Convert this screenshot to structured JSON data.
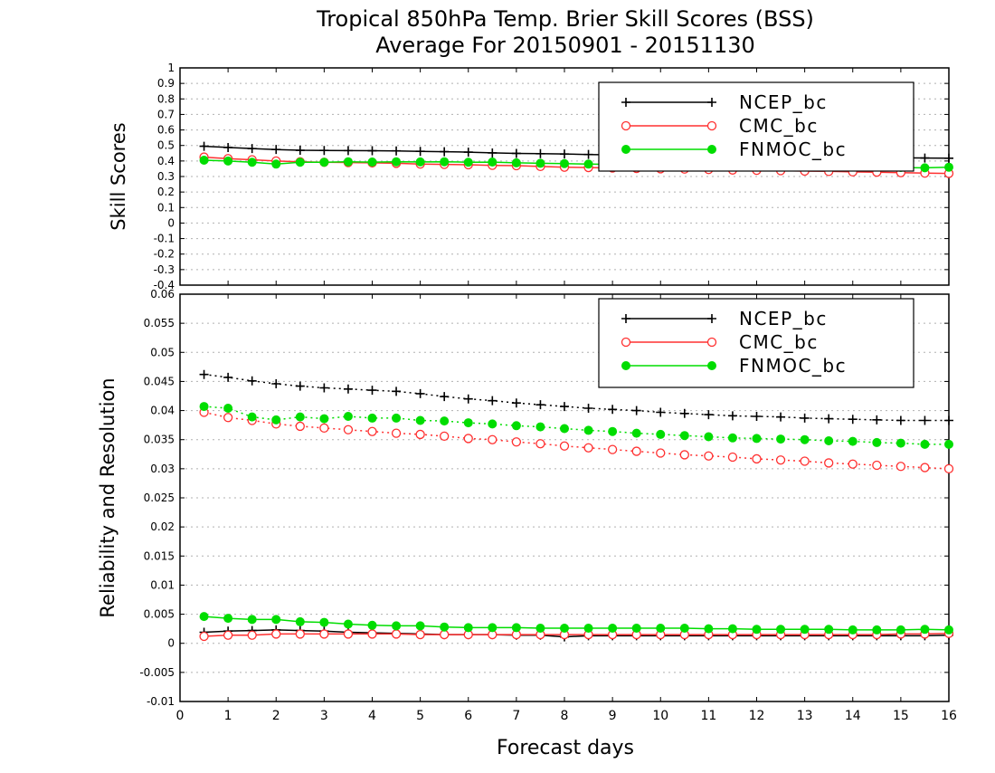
{
  "title_line1": "Tropical 850hPa Temp. Brier Skill Scores (BSS)",
  "title_line2": "Average For 20150901 - 20151130",
  "xlabel": "Forecast days",
  "colors": {
    "NCEP_bc": "#000000",
    "CMC_bc": "#ff3030",
    "FNMOC_bc": "#00dd00",
    "grid": "#b0b0b0"
  },
  "chart_data": [
    {
      "type": "line",
      "ylabel": "Skill Scores",
      "ylim": [
        -0.4,
        1.0
      ],
      "xlim": [
        0,
        16
      ],
      "y_ticks": [
        "-0.4",
        "-0.3",
        "-0.2",
        "-0.1",
        "0",
        "0.1",
        "0.2",
        "0.3",
        "0.4",
        "0.5",
        "0.6",
        "0.7",
        "0.8",
        "0.9",
        "1"
      ],
      "grid": true,
      "legend_position": "top-right",
      "x": [
        0.5,
        1,
        1.5,
        2,
        2.5,
        3,
        3.5,
        4,
        4.5,
        5,
        5.5,
        6,
        6.5,
        7,
        7.5,
        8,
        8.5,
        9,
        9.5,
        10,
        10.5,
        11,
        11.5,
        12,
        12.5,
        13,
        13.5,
        14,
        14.5,
        15,
        15.5,
        16
      ],
      "series": [
        {
          "name": "NCEP_bc",
          "style": "solid",
          "marker": "plus",
          "values": [
            0.495,
            0.487,
            0.48,
            0.474,
            0.469,
            0.468,
            0.467,
            0.466,
            0.465,
            0.462,
            0.46,
            0.457,
            0.452,
            0.449,
            0.447,
            0.445,
            0.442,
            0.44,
            0.438,
            0.436,
            0.434,
            0.432,
            0.43,
            0.428,
            0.427,
            0.425,
            0.424,
            0.423,
            0.422,
            0.42,
            0.419,
            0.418
          ]
        },
        {
          "name": "CMC_bc",
          "style": "solid",
          "marker": "open-circle",
          "values": [
            0.425,
            0.415,
            0.408,
            0.4,
            0.395,
            0.392,
            0.39,
            0.388,
            0.385,
            0.38,
            0.378,
            0.376,
            0.372,
            0.37,
            0.365,
            0.36,
            0.358,
            0.355,
            0.352,
            0.35,
            0.348,
            0.345,
            0.342,
            0.34,
            0.338,
            0.335,
            0.333,
            0.33,
            0.328,
            0.325,
            0.322,
            0.32
          ]
        },
        {
          "name": "FNMOC_bc",
          "style": "solid",
          "marker": "filled-circle",
          "values": [
            0.405,
            0.4,
            0.392,
            0.38,
            0.392,
            0.392,
            0.395,
            0.393,
            0.395,
            0.394,
            0.395,
            0.392,
            0.393,
            0.388,
            0.385,
            0.383,
            0.38,
            0.378,
            0.376,
            0.375,
            0.373,
            0.372,
            0.371,
            0.37,
            0.368,
            0.366,
            0.365,
            0.363,
            0.361,
            0.358,
            0.356,
            0.36
          ]
        }
      ]
    },
    {
      "type": "line",
      "ylabel": "Reliability and Resolution",
      "ylim": [
        -0.01,
        0.06
      ],
      "xlim": [
        0,
        16
      ],
      "y_ticks": [
        "-0.01",
        "-0.005",
        "0",
        "0.005",
        "0.01",
        "0.015",
        "0.02",
        "0.025",
        "0.03",
        "0.035",
        "0.04",
        "0.045",
        "0.05",
        "0.055",
        "0.06"
      ],
      "x_ticks": [
        "0",
        "1",
        "2",
        "3",
        "4",
        "5",
        "6",
        "7",
        "8",
        "9",
        "10",
        "11",
        "12",
        "13",
        "14",
        "15",
        "16"
      ],
      "grid": true,
      "legend_position": "top-right",
      "x": [
        0.5,
        1,
        1.5,
        2,
        2.5,
        3,
        3.5,
        4,
        4.5,
        5,
        5.5,
        6,
        6.5,
        7,
        7.5,
        8,
        8.5,
        9,
        9.5,
        10,
        10.5,
        11,
        11.5,
        12,
        12.5,
        13,
        13.5,
        14,
        14.5,
        15,
        15.5,
        16
      ],
      "series": [
        {
          "name": "NCEP_bc",
          "style": "dotted",
          "marker": "plus",
          "values": [
            0.0462,
            0.0457,
            0.0451,
            0.0446,
            0.0442,
            0.0439,
            0.0437,
            0.0435,
            0.0433,
            0.0429,
            0.0424,
            0.042,
            0.0417,
            0.0413,
            0.041,
            0.0407,
            0.0404,
            0.0402,
            0.04,
            0.0397,
            0.0395,
            0.0393,
            0.0391,
            0.039,
            0.0389,
            0.0387,
            0.0386,
            0.0385,
            0.0384,
            0.0383,
            0.0383,
            0.0383
          ]
        },
        {
          "name": "CMC_bc",
          "style": "dotted",
          "marker": "open-circle",
          "values": [
            0.0397,
            0.0388,
            0.0383,
            0.0377,
            0.0373,
            0.037,
            0.0367,
            0.0364,
            0.0361,
            0.0359,
            0.0356,
            0.0352,
            0.035,
            0.0346,
            0.0343,
            0.0339,
            0.0336,
            0.0333,
            0.033,
            0.0327,
            0.0324,
            0.0322,
            0.032,
            0.0317,
            0.0315,
            0.0313,
            0.031,
            0.0308,
            0.0306,
            0.0304,
            0.0302,
            0.03
          ]
        },
        {
          "name": "FNMOC_bc",
          "style": "dotted",
          "marker": "filled-circle",
          "values": [
            0.0407,
            0.0404,
            0.0389,
            0.0384,
            0.0389,
            0.0386,
            0.039,
            0.0387,
            0.0387,
            0.0383,
            0.0382,
            0.0379,
            0.0377,
            0.0374,
            0.0372,
            0.0369,
            0.0366,
            0.0364,
            0.0361,
            0.0359,
            0.0357,
            0.0355,
            0.0353,
            0.0352,
            0.0351,
            0.035,
            0.0348,
            0.0347,
            0.0345,
            0.0344,
            0.0342,
            0.0342
          ]
        },
        {
          "name": "NCEP_bc",
          "style": "solid",
          "marker": "plus",
          "values": [
            0.0019,
            0.0021,
            0.0022,
            0.0023,
            0.0022,
            0.0021,
            0.0019,
            0.0018,
            0.0017,
            0.0016,
            0.0015,
            0.0015,
            0.0015,
            0.0014,
            0.0014,
            0.0011,
            0.0013,
            0.0013,
            0.0013,
            0.0013,
            0.0013,
            0.0013,
            0.0013,
            0.0013,
            0.0013,
            0.0013,
            0.0013,
            0.0013,
            0.0013,
            0.0013,
            0.0013,
            0.0014
          ]
        },
        {
          "name": "CMC_bc",
          "style": "solid",
          "marker": "open-circle",
          "values": [
            0.0012,
            0.0014,
            0.0014,
            0.0016,
            0.0016,
            0.0016,
            0.0016,
            0.0016,
            0.0016,
            0.0015,
            0.0015,
            0.0015,
            0.0015,
            0.0015,
            0.0015,
            0.0015,
            0.0015,
            0.0015,
            0.0015,
            0.0015,
            0.0015,
            0.0015,
            0.0015,
            0.0015,
            0.0015,
            0.0015,
            0.0015,
            0.0015,
            0.0015,
            0.0016,
            0.0016,
            0.0017
          ]
        },
        {
          "name": "FNMOC_bc",
          "style": "solid",
          "marker": "filled-circle",
          "values": [
            0.0046,
            0.0043,
            0.0041,
            0.0041,
            0.0037,
            0.0036,
            0.0033,
            0.0031,
            0.003,
            0.003,
            0.0028,
            0.0027,
            0.0027,
            0.0027,
            0.0026,
            0.0026,
            0.0026,
            0.0026,
            0.0026,
            0.0026,
            0.0026,
            0.0025,
            0.0025,
            0.0024,
            0.0024,
            0.0024,
            0.0024,
            0.0023,
            0.0023,
            0.0023,
            0.0024,
            0.0023
          ]
        }
      ]
    }
  ]
}
